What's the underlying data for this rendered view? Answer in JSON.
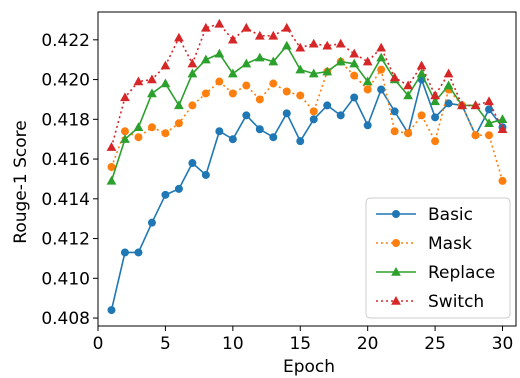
{
  "chart_data": {
    "type": "line",
    "xlabel": "Epoch",
    "ylabel": "Rouge-1 Score",
    "xlim": [
      0,
      31
    ],
    "ylim": [
      0.4076,
      0.4234
    ],
    "xticks": [
      0,
      5,
      10,
      15,
      20,
      25,
      30
    ],
    "yticks": [
      0.408,
      0.41,
      0.412,
      0.414,
      0.416,
      0.418,
      0.42,
      0.422
    ],
    "grid": false,
    "legend_position": "lower-right",
    "x": [
      1,
      2,
      3,
      4,
      5,
      6,
      7,
      8,
      9,
      10,
      11,
      12,
      13,
      14,
      15,
      16,
      17,
      18,
      19,
      20,
      21,
      22,
      23,
      24,
      25,
      26,
      27,
      28,
      29,
      30
    ],
    "series": [
      {
        "name": "Basic",
        "color": "#1f77b4",
        "marker": "circle",
        "linestyle": "solid",
        "values": [
          0.4084,
          0.4113,
          0.4113,
          0.4128,
          0.4142,
          0.4145,
          0.4158,
          0.4152,
          0.4174,
          0.417,
          0.4182,
          0.4175,
          0.4171,
          0.4183,
          0.4169,
          0.418,
          0.4187,
          0.4182,
          0.4191,
          0.4177,
          0.4195,
          0.4184,
          0.4173,
          0.42,
          0.4181,
          0.4188,
          0.4187,
          0.4172,
          0.4185,
          0.4176
        ]
      },
      {
        "name": "Mask",
        "color": "#ff7f0e",
        "marker": "circle",
        "linestyle": "dotted",
        "values": [
          0.4156,
          0.4174,
          0.4171,
          0.4176,
          0.4173,
          0.4178,
          0.4187,
          0.4193,
          0.4199,
          0.4193,
          0.4197,
          0.419,
          0.4198,
          0.4194,
          0.4192,
          0.4184,
          0.4204,
          0.4209,
          0.4202,
          0.4195,
          0.4205,
          0.4174,
          0.4173,
          0.4182,
          0.4169,
          0.4195,
          0.4187,
          0.4172,
          0.4172,
          0.4149
        ]
      },
      {
        "name": "Replace",
        "color": "#2ca02c",
        "marker": "triangle",
        "linestyle": "solid",
        "values": [
          0.4149,
          0.417,
          0.4176,
          0.4193,
          0.4198,
          0.4187,
          0.4203,
          0.421,
          0.4213,
          0.4203,
          0.4208,
          0.4211,
          0.4209,
          0.4217,
          0.4205,
          0.4203,
          0.4204,
          0.4209,
          0.4208,
          0.4199,
          0.4211,
          0.42,
          0.4192,
          0.4203,
          0.4189,
          0.4197,
          0.4187,
          0.4187,
          0.4178,
          0.418
        ]
      },
      {
        "name": "Switch",
        "color": "#d62728",
        "marker": "triangle",
        "linestyle": "dotted",
        "values": [
          0.4166,
          0.4191,
          0.4199,
          0.42,
          0.4207,
          0.4221,
          0.4208,
          0.4226,
          0.4228,
          0.422,
          0.4226,
          0.4222,
          0.4222,
          0.4226,
          0.4216,
          0.4218,
          0.4217,
          0.4218,
          0.4213,
          0.4209,
          0.4216,
          0.4201,
          0.4197,
          0.4207,
          0.4192,
          0.4203,
          0.4187,
          0.4187,
          0.4189,
          0.4175
        ]
      }
    ]
  }
}
